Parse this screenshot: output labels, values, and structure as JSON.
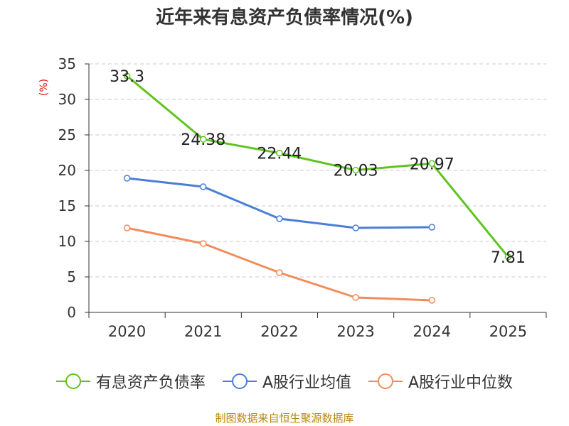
{
  "chart_data": {
    "type": "line",
    "title": "近年来有息资产负债率情况(%)",
    "ylabel": "(%)",
    "xlabel": "",
    "categories": [
      "2020",
      "2021",
      "2022",
      "2023",
      "2024",
      "2025"
    ],
    "ylim": [
      0,
      35
    ],
    "yticks": [
      0,
      5,
      10,
      15,
      20,
      25,
      30,
      35
    ],
    "grid": true,
    "legend_position": "bottom",
    "series": [
      {
        "name": "有息资产负债率",
        "color": "#5ec41f",
        "values": [
          33.3,
          24.38,
          22.44,
          20.03,
          20.97,
          7.81
        ],
        "labels": [
          "33.3",
          "24.38",
          "22.44",
          "20.03",
          "20.97",
          "7.81"
        ]
      },
      {
        "name": "A股行业均值",
        "color": "#4a7fd6",
        "values": [
          18.9,
          17.7,
          13.2,
          11.9,
          12.0,
          null
        ]
      },
      {
        "name": "A股行业中位数",
        "color": "#f28c5a",
        "values": [
          11.9,
          9.7,
          5.6,
          2.1,
          1.7,
          null
        ]
      }
    ]
  },
  "source": "制图数据来自恒生聚源数据库"
}
